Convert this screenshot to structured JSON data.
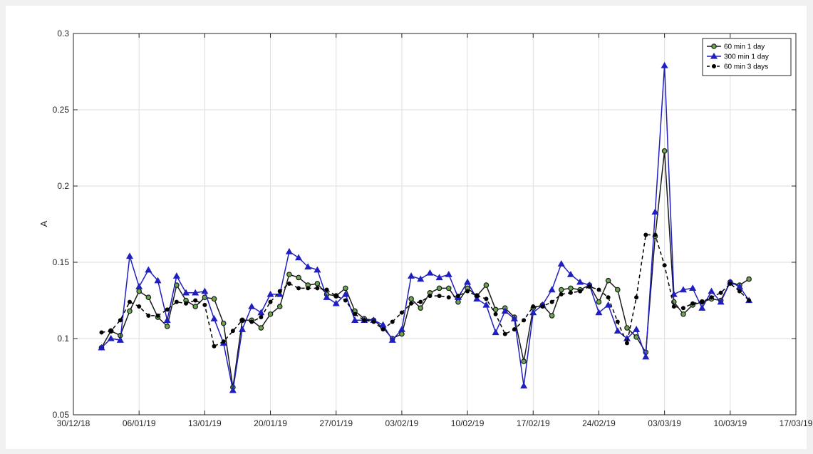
{
  "chart_data": {
    "type": "line",
    "title": "",
    "xlabel": "",
    "ylabel": "A",
    "ylim": [
      0.05,
      0.3
    ],
    "xlim": [
      "2018-12-30",
      "2019-03-17"
    ],
    "grid": true,
    "legend_position": "top-right",
    "x_ticks": [
      {
        "date": "2018-12-30",
        "label": "30/12/18"
      },
      {
        "date": "2019-01-06",
        "label": "06/01/19"
      },
      {
        "date": "2019-01-13",
        "label": "13/01/19"
      },
      {
        "date": "2019-01-20",
        "label": "20/01/19"
      },
      {
        "date": "2019-01-27",
        "label": "27/01/19"
      },
      {
        "date": "2019-02-03",
        "label": "03/02/19"
      },
      {
        "date": "2019-02-10",
        "label": "10/02/19"
      },
      {
        "date": "2019-02-17",
        "label": "17/02/19"
      },
      {
        "date": "2019-02-24",
        "label": "24/02/19"
      },
      {
        "date": "2019-03-03",
        "label": "03/03/19"
      },
      {
        "date": "2019-03-10",
        "label": "10/03/19"
      },
      {
        "date": "2019-03-17",
        "label": "17/03/19"
      }
    ],
    "y_ticks": [
      {
        "value": 0.05,
        "label": "0.05"
      },
      {
        "value": 0.1,
        "label": "0.1"
      },
      {
        "value": 0.15,
        "label": "0.15"
      },
      {
        "value": 0.2,
        "label": "0.2"
      },
      {
        "value": 0.25,
        "label": "0.25"
      },
      {
        "value": 0.3,
        "label": "0.3"
      }
    ],
    "x": [
      "2019-01-02",
      "2019-01-03",
      "2019-01-04",
      "2019-01-05",
      "2019-01-06",
      "2019-01-07",
      "2019-01-08",
      "2019-01-09",
      "2019-01-10",
      "2019-01-11",
      "2019-01-12",
      "2019-01-13",
      "2019-01-14",
      "2019-01-15",
      "2019-01-16",
      "2019-01-17",
      "2019-01-18",
      "2019-01-19",
      "2019-01-20",
      "2019-01-21",
      "2019-01-22",
      "2019-01-23",
      "2019-01-24",
      "2019-01-25",
      "2019-01-26",
      "2019-01-27",
      "2019-01-28",
      "2019-01-29",
      "2019-01-30",
      "2019-01-31",
      "2019-02-01",
      "2019-02-02",
      "2019-02-03",
      "2019-02-04",
      "2019-02-05",
      "2019-02-06",
      "2019-02-07",
      "2019-02-08",
      "2019-02-09",
      "2019-02-10",
      "2019-02-11",
      "2019-02-12",
      "2019-02-13",
      "2019-02-14",
      "2019-02-15",
      "2019-02-16",
      "2019-02-17",
      "2019-02-18",
      "2019-02-19",
      "2019-02-20",
      "2019-02-21",
      "2019-02-22",
      "2019-02-23",
      "2019-02-24",
      "2019-02-25",
      "2019-02-26",
      "2019-02-27",
      "2019-02-28",
      "2019-03-01",
      "2019-03-02",
      "2019-03-03",
      "2019-03-04",
      "2019-03-05",
      "2019-03-06",
      "2019-03-07",
      "2019-03-08",
      "2019-03-09",
      "2019-03-10",
      "2019-03-11",
      "2019-03-12"
    ],
    "series": [
      {
        "name": "60 min 1 day",
        "color": "#1a1a1a",
        "marker_fill": "#6aa84f",
        "marker": "circle",
        "line_style": "solid",
        "values": [
          0.094,
          0.105,
          0.102,
          0.118,
          0.131,
          0.127,
          0.114,
          0.108,
          0.135,
          0.125,
          0.121,
          0.127,
          0.126,
          0.11,
          0.068,
          0.112,
          0.112,
          0.107,
          0.116,
          0.121,
          0.142,
          0.14,
          0.135,
          0.136,
          0.129,
          0.128,
          0.133,
          0.118,
          0.113,
          0.112,
          0.107,
          0.1,
          0.103,
          0.126,
          0.12,
          0.13,
          0.133,
          0.133,
          0.124,
          0.133,
          0.128,
          0.135,
          0.119,
          0.12,
          0.114,
          0.085,
          0.12,
          0.122,
          0.115,
          0.132,
          0.133,
          0.132,
          0.135,
          0.124,
          0.138,
          0.132,
          0.107,
          0.101,
          0.091,
          0.167,
          0.223,
          0.124,
          0.116,
          0.122,
          0.124,
          0.126,
          0.125,
          0.137,
          0.135,
          0.139
        ]
      },
      {
        "name": "300 min 1 day",
        "color": "#1f1fbf",
        "marker_fill": "#1f1fbf",
        "marker": "triangle",
        "line_style": "solid",
        "values": [
          0.094,
          0.1,
          0.099,
          0.154,
          0.134,
          0.145,
          0.138,
          0.112,
          0.141,
          0.13,
          0.13,
          0.131,
          0.113,
          0.097,
          0.066,
          0.106,
          0.121,
          0.117,
          0.129,
          0.129,
          0.157,
          0.153,
          0.147,
          0.145,
          0.127,
          0.123,
          0.129,
          0.112,
          0.112,
          0.112,
          0.109,
          0.099,
          0.106,
          0.141,
          0.139,
          0.143,
          0.14,
          0.142,
          0.127,
          0.137,
          0.126,
          0.122,
          0.104,
          0.118,
          0.113,
          0.069,
          0.117,
          0.122,
          0.132,
          0.149,
          0.142,
          0.137,
          0.135,
          0.117,
          0.122,
          0.105,
          0.1,
          0.106,
          0.088,
          0.183,
          0.279,
          0.129,
          0.132,
          0.133,
          0.12,
          0.131,
          0.124,
          0.137,
          0.134,
          0.125
        ]
      },
      {
        "name": "60 min 3 days",
        "color": "#000000",
        "marker_fill": "#000000",
        "marker": "dot",
        "line_style": "dashed",
        "values": [
          0.104,
          0.105,
          0.112,
          0.124,
          0.121,
          0.115,
          0.115,
          0.119,
          0.124,
          0.123,
          0.125,
          0.122,
          0.095,
          0.098,
          0.105,
          0.112,
          0.111,
          0.114,
          0.124,
          0.131,
          0.136,
          0.133,
          0.133,
          0.133,
          0.132,
          0.128,
          0.125,
          0.116,
          0.112,
          0.111,
          0.106,
          0.111,
          0.117,
          0.123,
          0.124,
          0.128,
          0.128,
          0.127,
          0.128,
          0.131,
          0.128,
          0.126,
          0.116,
          0.103,
          0.106,
          0.112,
          0.121,
          0.121,
          0.124,
          0.129,
          0.13,
          0.131,
          0.134,
          0.132,
          0.127,
          0.111,
          0.097,
          0.127,
          0.168,
          0.168,
          0.148,
          0.121,
          0.12,
          0.123,
          0.124,
          0.127,
          0.13,
          0.136,
          0.131,
          0.125
        ]
      }
    ]
  }
}
